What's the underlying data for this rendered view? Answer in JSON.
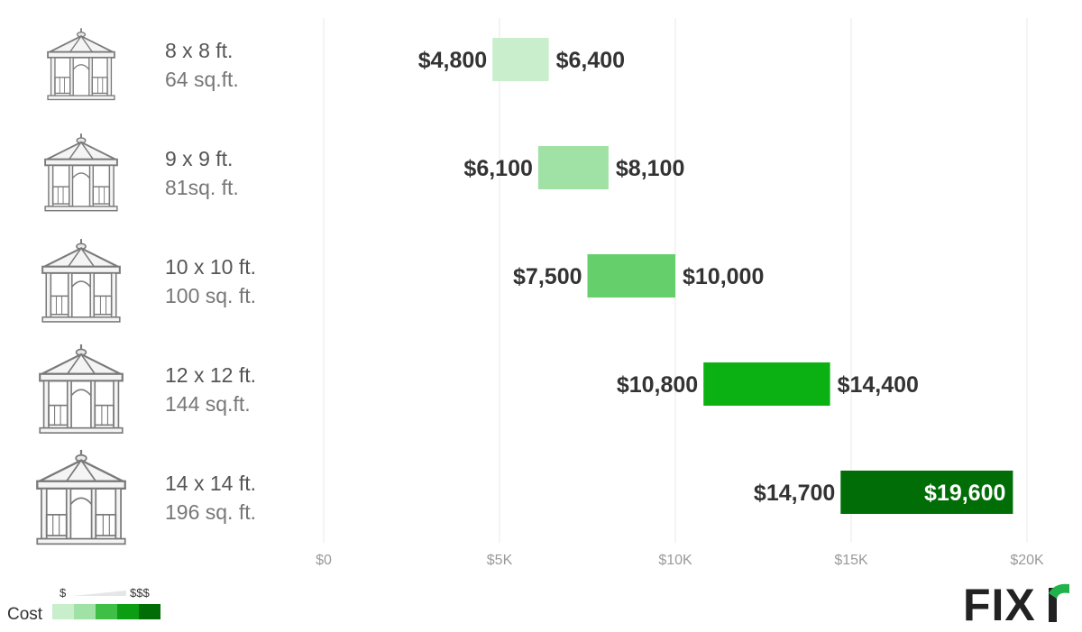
{
  "chart_data": {
    "type": "bar",
    "orientation": "horizontal-range",
    "rows": [
      {
        "size": "8 x 8 ft.",
        "area": "64 sq.ft.",
        "low": 4800,
        "high": 6400,
        "low_label": "$4,800",
        "high_label": "$6,400",
        "color": "#c9eecc",
        "icon": "gazebo-icon"
      },
      {
        "size": "9 x 9 ft.",
        "area": "81sq. ft.",
        "low": 6100,
        "high": 8100,
        "low_label": "$6,100",
        "high_label": "$8,100",
        "color": "#a0e2a6",
        "icon": "gazebo-icon"
      },
      {
        "size": "10 x 10 ft.",
        "area": "100 sq. ft.",
        "low": 7500,
        "high": 10000,
        "low_label": "$7,500",
        "high_label": "$10,000",
        "color": "#65cf6b",
        "icon": "gazebo-icon"
      },
      {
        "size": "12 x 12 ft.",
        "area": "144 sq.ft.",
        "low": 10800,
        "high": 14400,
        "low_label": "$10,800",
        "high_label": "$14,400",
        "color": "#0bb112",
        "icon": "gazebo-icon"
      },
      {
        "size": "14 x 14 ft.",
        "area": "196 sq. ft.",
        "low": 14700,
        "high": 19600,
        "low_label": "$14,700",
        "high_label": "$19,600",
        "color": "#006d06",
        "icon": "gazebo-icon"
      }
    ],
    "xlim": [
      0,
      20000
    ],
    "ticks": [
      {
        "value": 0,
        "label": "$0"
      },
      {
        "value": 5000,
        "label": "$5K"
      },
      {
        "value": 10000,
        "label": "$10K"
      },
      {
        "value": 15000,
        "label": "$15K"
      },
      {
        "value": 20000,
        "label": "$20K"
      }
    ],
    "grid": true
  },
  "legend": {
    "title": "Cost",
    "low_symbol": "$",
    "high_symbol": "$$$",
    "colors": [
      "#c9eecc",
      "#a0e2a6",
      "#3fbf45",
      "#0b9e12",
      "#006d06"
    ]
  },
  "logo": {
    "text": "FIXr",
    "accent": "#22b24c"
  }
}
